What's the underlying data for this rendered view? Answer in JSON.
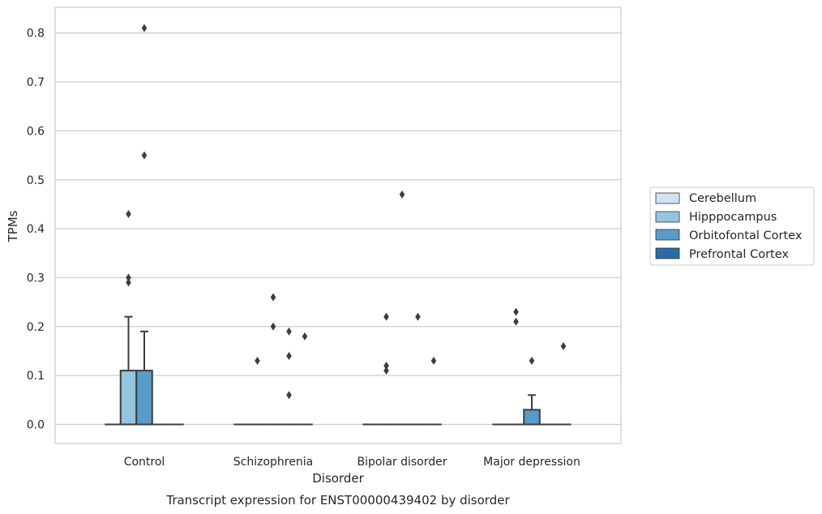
{
  "chart_data": {
    "type": "box",
    "title": "Transcript expression for ENST00000439402 by disorder",
    "xlabel": "Disorder",
    "ylabel": "TPMs",
    "ylim": [
      -0.04,
      0.855
    ],
    "yticks": [
      "0.0",
      "0.1",
      "0.2",
      "0.3",
      "0.4",
      "0.5",
      "0.6",
      "0.7",
      "0.8"
    ],
    "categories": [
      "Control",
      "Schizophrenia",
      "Bipolar disorder",
      "Major depression"
    ],
    "grid": "horizontal",
    "legend_position": "right",
    "series": [
      {
        "name": "Cerebellum",
        "color": "#d0e1f2",
        "boxes": [
          {
            "q1": 0,
            "median": 0,
            "q3": 0,
            "whisker_low": 0,
            "whisker_high": 0,
            "outliers": []
          },
          {
            "q1": 0,
            "median": 0,
            "q3": 0,
            "whisker_low": 0,
            "whisker_high": 0,
            "outliers": []
          },
          {
            "q1": 0,
            "median": 0,
            "q3": 0,
            "whisker_low": 0,
            "whisker_high": 0,
            "outliers": []
          },
          {
            "q1": 0,
            "median": 0,
            "q3": 0,
            "whisker_low": 0,
            "whisker_high": 0,
            "outliers": []
          }
        ]
      },
      {
        "name": "Hipppocampus",
        "color": "#94c4df",
        "boxes": [
          {
            "q1": 0,
            "median": 0,
            "q3": 0.11,
            "whisker_low": 0,
            "whisker_high": 0.22,
            "outliers": [
              0.29,
              0.3,
              0.43
            ]
          },
          {
            "q1": 0,
            "median": 0,
            "q3": 0,
            "whisker_low": 0,
            "whisker_high": 0,
            "outliers": [
              0.13
            ]
          },
          {
            "q1": 0,
            "median": 0,
            "q3": 0,
            "whisker_low": 0,
            "whisker_high": 0,
            "outliers": [
              0.11,
              0.12,
              0.22
            ]
          },
          {
            "q1": 0,
            "median": 0,
            "q3": 0,
            "whisker_low": 0,
            "whisker_high": 0,
            "outliers": [
              0.21,
              0.23
            ]
          }
        ]
      },
      {
        "name": "Orbitofontal Cortex",
        "color": "#5a9cc9",
        "boxes": [
          {
            "q1": 0,
            "median": 0,
            "q3": 0.11,
            "whisker_low": 0,
            "whisker_high": 0.19,
            "outliers": [
              0.55,
              0.81
            ]
          },
          {
            "q1": 0,
            "median": 0,
            "q3": 0,
            "whisker_low": 0,
            "whisker_high": 0,
            "outliers": [
              0.2,
              0.26
            ]
          },
          {
            "q1": 0,
            "median": 0,
            "q3": 0,
            "whisker_low": 0,
            "whisker_high": 0,
            "outliers": [
              0.47
            ]
          },
          {
            "q1": 0,
            "median": 0,
            "q3": 0.03,
            "whisker_low": 0,
            "whisker_high": 0.06,
            "outliers": [
              0.13
            ]
          }
        ]
      },
      {
        "name": "Prefrontal Cortex",
        "color": "#2b6ba9",
        "boxes": [
          {
            "q1": 0,
            "median": 0,
            "q3": 0,
            "whisker_low": 0,
            "whisker_high": 0,
            "outliers": []
          },
          {
            "q1": 0,
            "median": 0,
            "q3": 0,
            "whisker_low": 0,
            "whisker_high": 0,
            "outliers": [
              0.06,
              0.14,
              0.19
            ]
          },
          {
            "q1": 0,
            "median": 0,
            "q3": 0,
            "whisker_low": 0,
            "whisker_high": 0,
            "outliers": [
              0.22
            ]
          },
          {
            "q1": 0,
            "median": 0,
            "q3": 0,
            "whisker_low": 0,
            "whisker_high": 0,
            "outliers": []
          }
        ]
      },
      {
        "name": "",
        "color": "#2b6ba9",
        "boxes": [
          {
            "q1": 0,
            "median": 0,
            "q3": 0,
            "whisker_low": 0,
            "whisker_high": 0,
            "outliers": []
          },
          {
            "q1": 0,
            "median": 0,
            "q3": 0,
            "whisker_low": 0,
            "whisker_high": 0,
            "outliers": [
              0.18
            ]
          },
          {
            "q1": 0,
            "median": 0,
            "q3": 0,
            "whisker_low": 0,
            "whisker_high": 0,
            "outliers": [
              0.13
            ]
          },
          {
            "q1": 0,
            "median": 0,
            "q3": 0,
            "whisker_low": 0,
            "whisker_high": 0,
            "outliers": [
              0.16
            ]
          }
        ]
      }
    ]
  }
}
